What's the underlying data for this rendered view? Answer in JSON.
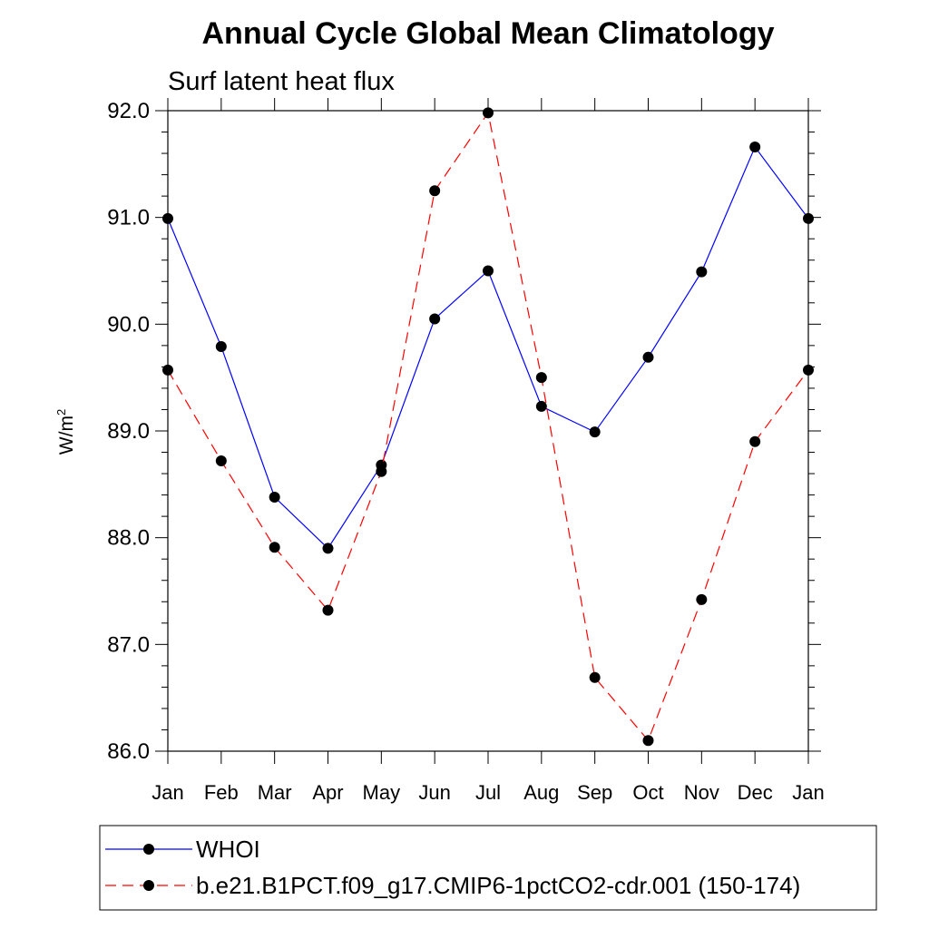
{
  "chart_data": {
    "type": "line",
    "title": "Annual Cycle Global Mean Climatology",
    "subtitle": "Surf latent heat flux",
    "xlabel": "",
    "ylabel": "W/m",
    "ylabel_superscript": "2",
    "ylim": [
      86.0,
      92.0
    ],
    "yticks": [
      "86.0",
      "87.0",
      "88.0",
      "89.0",
      "90.0",
      "91.0",
      "92.0"
    ],
    "categories": [
      "Jan",
      "Feb",
      "Mar",
      "Apr",
      "May",
      "Jun",
      "Jul",
      "Aug",
      "Sep",
      "Oct",
      "Nov",
      "Dec",
      "Jan"
    ],
    "legend_position": "bottom",
    "grid": false,
    "series": [
      {
        "name": "WHOI",
        "color": "#0000ff",
        "style": "solid",
        "values": [
          90.99,
          89.79,
          88.38,
          87.9,
          88.68,
          90.05,
          90.5,
          89.23,
          88.99,
          89.69,
          90.49,
          91.66,
          90.99
        ]
      },
      {
        "name": "b.e21.B1PCT.f09_g17.CMIP6-1pctCO2-cdr.001 (150-174)",
        "color": "#ff0000",
        "style": "dashed",
        "values": [
          89.57,
          88.72,
          87.91,
          87.32,
          88.62,
          91.25,
          91.98,
          89.5,
          86.69,
          86.1,
          87.42,
          88.9,
          89.57
        ]
      }
    ]
  }
}
